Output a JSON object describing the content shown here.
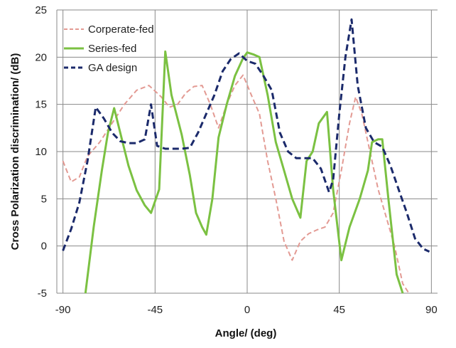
{
  "chart_data": {
    "type": "line",
    "xlabel": "Angle/ (deg)",
    "ylabel": "Cross Polarization discrimination/ (dB)",
    "xlim": [
      -93,
      93
    ],
    "ylim": [
      -5,
      25
    ],
    "xticks": [
      -90,
      -45,
      0,
      45,
      90
    ],
    "yticks": [
      -5,
      0,
      5,
      10,
      15,
      20,
      25
    ],
    "grid": true,
    "legend_position": "top-left",
    "series": [
      {
        "name": "Corperate-fed",
        "color": "#e39a93",
        "dash": "dashed",
        "points": [
          [
            -90,
            9
          ],
          [
            -86,
            6.8
          ],
          [
            -82,
            7.3
          ],
          [
            -78,
            9.5
          ],
          [
            -72,
            11
          ],
          [
            -66,
            13
          ],
          [
            -60,
            15
          ],
          [
            -54,
            16.5
          ],
          [
            -48,
            17
          ],
          [
            -42,
            15.8
          ],
          [
            -38,
            14.7
          ],
          [
            -34,
            15
          ],
          [
            -30,
            16.2
          ],
          [
            -26,
            16.9
          ],
          [
            -22,
            17
          ],
          [
            -18,
            15
          ],
          [
            -14,
            12.5
          ],
          [
            -10,
            15
          ],
          [
            -6,
            17
          ],
          [
            -2,
            18.1
          ],
          [
            2,
            16
          ],
          [
            6,
            14
          ],
          [
            10,
            9
          ],
          [
            14,
            5
          ],
          [
            18,
            0.5
          ],
          [
            22,
            -1.5
          ],
          [
            26,
            0.5
          ],
          [
            30,
            1.3
          ],
          [
            34,
            1.7
          ],
          [
            38,
            2
          ],
          [
            42,
            3.5
          ],
          [
            46,
            8
          ],
          [
            50,
            13
          ],
          [
            53,
            15.8
          ],
          [
            56,
            14
          ],
          [
            60,
            10
          ],
          [
            64,
            6
          ],
          [
            68,
            3
          ],
          [
            72,
            0
          ],
          [
            76,
            -4
          ],
          [
            79,
            -5
          ]
        ]
      },
      {
        "name": "Series-fed",
        "color": "#7bc142",
        "dash": "solid",
        "points": [
          [
            -79,
            -5
          ],
          [
            -75,
            2
          ],
          [
            -71,
            8
          ],
          [
            -68,
            12
          ],
          [
            -65,
            14.6
          ],
          [
            -62,
            12
          ],
          [
            -58,
            8.5
          ],
          [
            -54,
            5.9
          ],
          [
            -50,
            4.3
          ],
          [
            -47,
            3.5
          ],
          [
            -43,
            6
          ],
          [
            -40,
            20.6
          ],
          [
            -37,
            16
          ],
          [
            -32,
            11.8
          ],
          [
            -28,
            7.5
          ],
          [
            -25,
            3.5
          ],
          [
            -22,
            2
          ],
          [
            -20,
            1.2
          ],
          [
            -17,
            5
          ],
          [
            -14,
            11.5
          ],
          [
            -10,
            15
          ],
          [
            -6,
            18
          ],
          [
            -2,
            19.9
          ],
          [
            0,
            20.5
          ],
          [
            3,
            20.3
          ],
          [
            6,
            20
          ],
          [
            10,
            16
          ],
          [
            14,
            11
          ],
          [
            18,
            8
          ],
          [
            22,
            5
          ],
          [
            26,
            3
          ],
          [
            29,
            9
          ],
          [
            32,
            10
          ],
          [
            35,
            13
          ],
          [
            39,
            14.2
          ],
          [
            42,
            6
          ],
          [
            46,
            -1.5
          ],
          [
            50,
            2
          ],
          [
            55,
            5
          ],
          [
            59,
            8
          ],
          [
            61,
            11
          ],
          [
            64,
            11.3
          ],
          [
            66,
            11.3
          ],
          [
            69,
            5
          ],
          [
            73,
            -3
          ],
          [
            76,
            -5
          ]
        ]
      },
      {
        "name": "GA design",
        "color": "#1b2a6b",
        "dash": "dashed",
        "points": [
          [
            -90,
            -0.5
          ],
          [
            -86,
            1.8
          ],
          [
            -82,
            4.6
          ],
          [
            -78,
            9
          ],
          [
            -74,
            14.7
          ],
          [
            -70,
            13.5
          ],
          [
            -66,
            12
          ],
          [
            -62,
            11.1
          ],
          [
            -58,
            10.9
          ],
          [
            -54,
            10.9
          ],
          [
            -50,
            11.3
          ],
          [
            -47,
            15
          ],
          [
            -44,
            10.6
          ],
          [
            -40,
            10.3
          ],
          [
            -36,
            10.3
          ],
          [
            -32,
            10.3
          ],
          [
            -28,
            10.4
          ],
          [
            -24,
            12
          ],
          [
            -20,
            14
          ],
          [
            -16,
            16
          ],
          [
            -12,
            18.5
          ],
          [
            -8,
            19.8
          ],
          [
            -4,
            20.4
          ],
          [
            0,
            19.6
          ],
          [
            4,
            19.3
          ],
          [
            8,
            18
          ],
          [
            12,
            16.5
          ],
          [
            16,
            12
          ],
          [
            20,
            10
          ],
          [
            24,
            9.3
          ],
          [
            28,
            9.3
          ],
          [
            32,
            9.3
          ],
          [
            36,
            8.2
          ],
          [
            40,
            5.7
          ],
          [
            42,
            7
          ],
          [
            45,
            14
          ],
          [
            48,
            20
          ],
          [
            51,
            24
          ],
          [
            54,
            17
          ],
          [
            58,
            12.5
          ],
          [
            62,
            11
          ],
          [
            66,
            10.5
          ],
          [
            70,
            8.5
          ],
          [
            74,
            6
          ],
          [
            78,
            3.5
          ],
          [
            82,
            0.8
          ],
          [
            86,
            -0.3
          ],
          [
            89,
            -0.6
          ]
        ]
      }
    ]
  }
}
